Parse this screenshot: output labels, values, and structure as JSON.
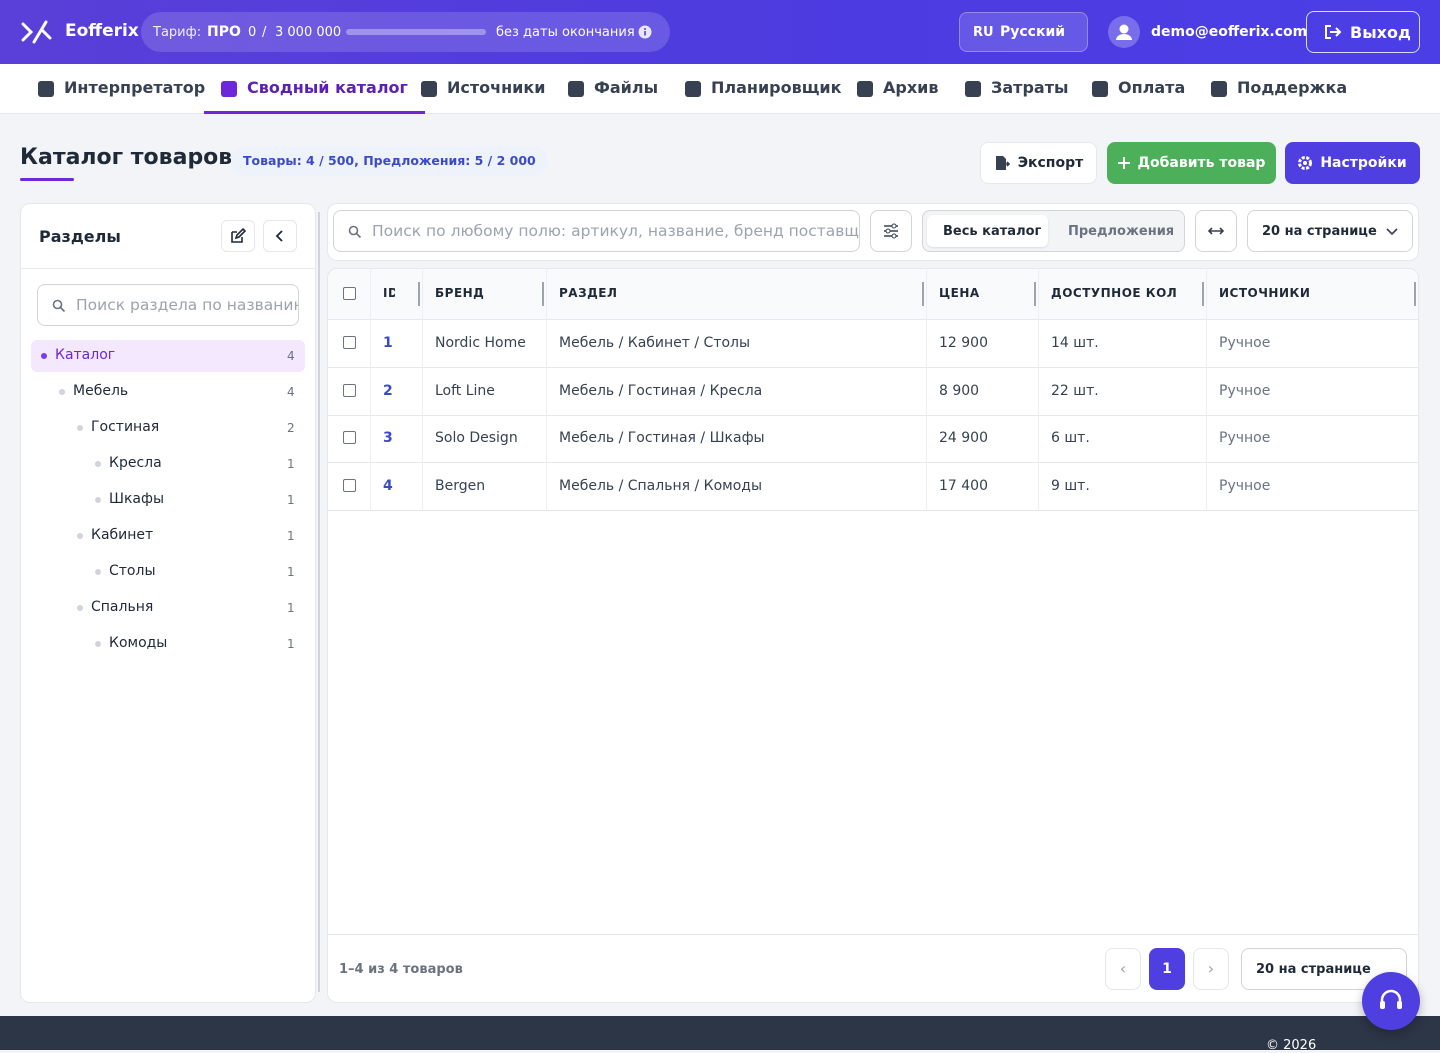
{
  "header": {
    "logo": "Eofferix",
    "plan_label": "Тариф:",
    "plan": "ПРО",
    "usage": "0",
    "usage_sep": "/",
    "usage_limit": "3 000 000",
    "expiry": "без даты окончания",
    "lang_code": "RU",
    "lang": "Русский",
    "user": "demo@eofferix.com",
    "logout": "Выход"
  },
  "nav": [
    "Интерпретатор",
    "Сводный каталог",
    "Источники",
    "Файлы",
    "Планировщик",
    "Архив",
    "Затраты",
    "Оплата",
    "Поддержка"
  ],
  "page": {
    "title": "Каталог товаров",
    "badge": "Товары: 4 / 500, Предложения: 5 / 2 000",
    "export": "Экспорт",
    "add": "Добавить товар",
    "settings": "Настройки"
  },
  "sidebar": {
    "title": "Разделы",
    "search_placeholder": "Поиск раздела по названию",
    "tree": [
      {
        "label": "Каталог",
        "count": 4
      },
      {
        "label": "Мебель",
        "count": 4
      },
      {
        "label": "Гостиная",
        "count": 2
      },
      {
        "label": "Кресла",
        "count": 1
      },
      {
        "label": "Шкафы",
        "count": 1
      },
      {
        "label": "Кабинет",
        "count": 1
      },
      {
        "label": "Столы",
        "count": 1
      },
      {
        "label": "Спальня",
        "count": 1
      },
      {
        "label": "Комоды",
        "count": 1
      }
    ]
  },
  "toolbar": {
    "search_placeholder": "Поиск по любому полю: артикул, название, бренд поставщика",
    "tabs": [
      "Весь каталог",
      "Предложения"
    ],
    "page_size": "20 на странице"
  },
  "table": {
    "columns": [
      "ID",
      "БРЕНД",
      "РАЗДЕЛ",
      "ЦЕНА",
      "ДОСТУПНОЕ КОЛ",
      "ИСТОЧНИКИ"
    ],
    "rows": [
      [
        "1",
        "Nordic Home",
        "Мебель / Кабинет / Столы",
        "12 900",
        "14 шт.",
        "Ручное"
      ],
      [
        "2",
        "Loft Line",
        "Мебель / Гостиная / Кресла",
        "8 900",
        "22 шт.",
        "Ручное"
      ],
      [
        "3",
        "Solo Design",
        "Мебель / Гостиная / Шкафы",
        "24 900",
        "6 шт.",
        "Ручное"
      ],
      [
        "4",
        "Bergen",
        "Мебель / Спальня / Комоды",
        "17 400",
        "9 шт.",
        "Ручное"
      ]
    ]
  },
  "pagination": {
    "summary": "1–4 из 4 товаров",
    "prev": "‹",
    "page": "1",
    "next": "›",
    "page_size": "20 на странице"
  },
  "footer": {
    "copyright": "© 2026"
  }
}
